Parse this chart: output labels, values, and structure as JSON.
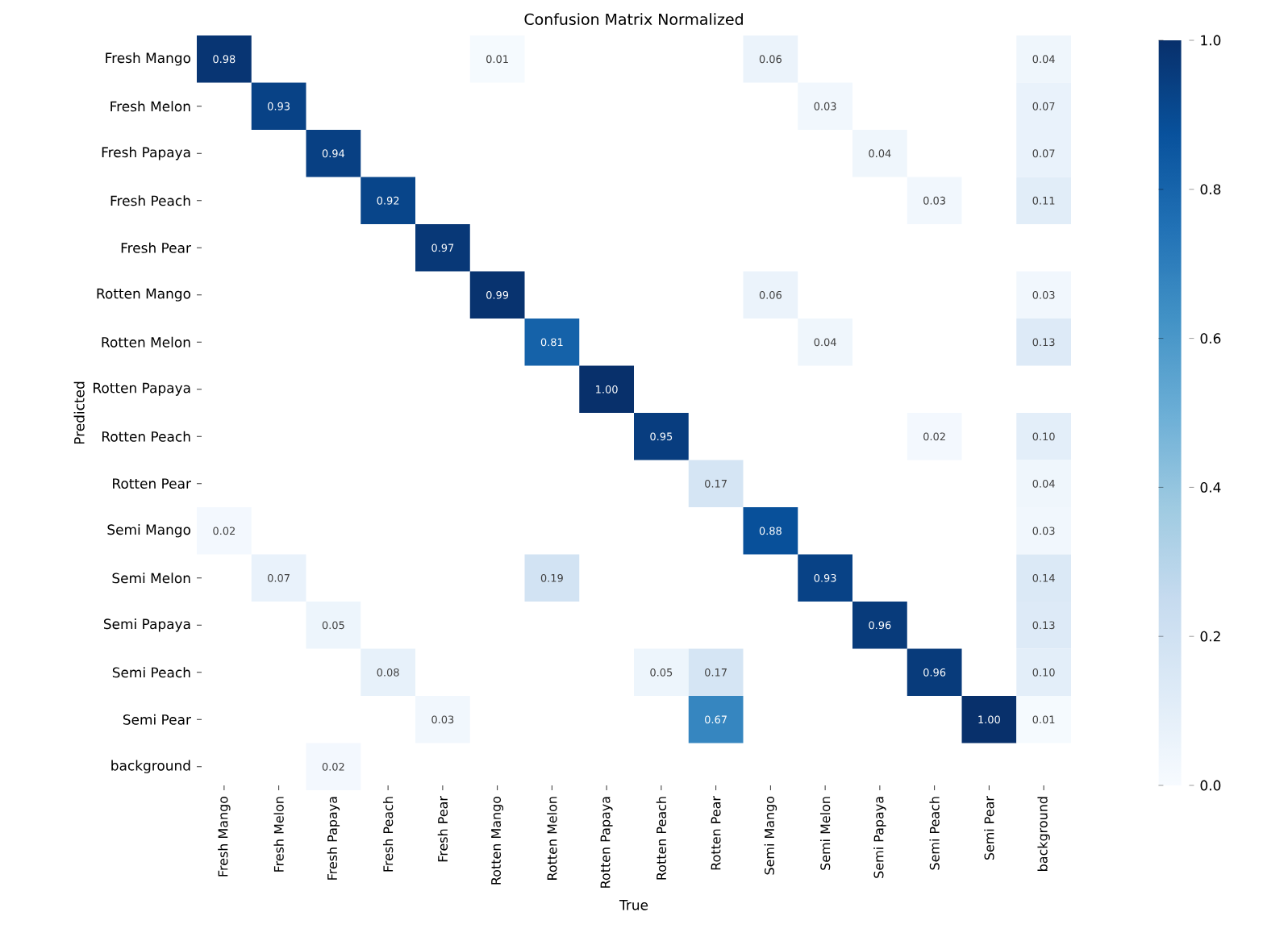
{
  "chart_data": {
    "type": "heatmap",
    "title": "Confusion Matrix Normalized",
    "xlabel": "True",
    "ylabel": "Predicted",
    "categories": [
      "Fresh Mango",
      "Fresh Melon",
      "Fresh Papaya",
      "Fresh Peach",
      "Fresh Pear",
      "Rotten Mango",
      "Rotten Melon",
      "Rotten Papaya",
      "Rotten Peach",
      "Rotten Pear",
      "Semi Mango",
      "Semi Melon",
      "Semi Papaya",
      "Semi Peach",
      "Semi Pear",
      "background"
    ],
    "y_categories": [
      "Fresh Mango",
      "Fresh Melon",
      "Fresh Papaya",
      "Fresh Peach",
      "Fresh Pear",
      "Rotten Mango",
      "Rotten Melon",
      "Rotten Papaya",
      "Rotten Peach",
      "Rotten Pear",
      "Semi Mango",
      "Semi Melon",
      "Semi Papaya",
      "Semi Peach",
      "Semi Pear",
      "background"
    ],
    "cells": [
      [
        0.98,
        null,
        null,
        null,
        null,
        0.01,
        null,
        null,
        null,
        null,
        0.06,
        null,
        null,
        null,
        null,
        0.04
      ],
      [
        null,
        0.93,
        null,
        null,
        null,
        null,
        null,
        null,
        null,
        null,
        null,
        0.03,
        null,
        null,
        null,
        0.07
      ],
      [
        null,
        null,
        0.94,
        null,
        null,
        null,
        null,
        null,
        null,
        null,
        null,
        null,
        0.04,
        null,
        null,
        0.07
      ],
      [
        null,
        null,
        null,
        0.92,
        null,
        null,
        null,
        null,
        null,
        null,
        null,
        null,
        null,
        0.03,
        null,
        0.11
      ],
      [
        null,
        null,
        null,
        null,
        0.97,
        null,
        null,
        null,
        null,
        null,
        null,
        null,
        null,
        null,
        null,
        null
      ],
      [
        null,
        null,
        null,
        null,
        null,
        0.99,
        null,
        null,
        null,
        null,
        0.06,
        null,
        null,
        null,
        null,
        0.03
      ],
      [
        null,
        null,
        null,
        null,
        null,
        null,
        0.81,
        null,
        null,
        null,
        null,
        0.04,
        null,
        null,
        null,
        0.13
      ],
      [
        null,
        null,
        null,
        null,
        null,
        null,
        null,
        1.0,
        null,
        null,
        null,
        null,
        null,
        null,
        null,
        null
      ],
      [
        null,
        null,
        null,
        null,
        null,
        null,
        null,
        null,
        0.95,
        null,
        null,
        null,
        null,
        0.02,
        null,
        0.1
      ],
      [
        null,
        null,
        null,
        null,
        null,
        null,
        null,
        null,
        null,
        0.17,
        null,
        null,
        null,
        null,
        null,
        0.04
      ],
      [
        0.02,
        null,
        null,
        null,
        null,
        null,
        null,
        null,
        null,
        null,
        0.88,
        null,
        null,
        null,
        null,
        0.03
      ],
      [
        null,
        0.07,
        null,
        null,
        null,
        null,
        0.19,
        null,
        null,
        null,
        null,
        0.93,
        null,
        null,
        null,
        0.14
      ],
      [
        null,
        null,
        0.05,
        null,
        null,
        null,
        null,
        null,
        null,
        null,
        null,
        null,
        0.96,
        null,
        null,
        0.13
      ],
      [
        null,
        null,
        null,
        0.08,
        null,
        null,
        null,
        null,
        0.05,
        0.17,
        null,
        null,
        null,
        0.96,
        null,
        0.1
      ],
      [
        null,
        null,
        null,
        null,
        0.03,
        null,
        null,
        null,
        null,
        0.67,
        null,
        null,
        null,
        null,
        1.0,
        0.01
      ],
      [
        null,
        null,
        0.02,
        null,
        null,
        null,
        null,
        null,
        null,
        null,
        null,
        null,
        null,
        null,
        null,
        null
      ]
    ],
    "cell_labels": [
      [
        "0.98",
        null,
        null,
        null,
        null,
        "0.01",
        null,
        null,
        null,
        null,
        "0.06",
        null,
        null,
        null,
        null,
        "0.04"
      ],
      [
        null,
        "0.93",
        null,
        null,
        null,
        null,
        null,
        null,
        null,
        null,
        null,
        "0.03",
        null,
        null,
        null,
        "0.07"
      ],
      [
        null,
        null,
        "0.94",
        null,
        null,
        null,
        null,
        null,
        null,
        null,
        null,
        null,
        "0.04",
        null,
        null,
        "0.07"
      ],
      [
        null,
        null,
        null,
        "0.92",
        null,
        null,
        null,
        null,
        null,
        null,
        null,
        null,
        null,
        "0.03",
        null,
        "0.11"
      ],
      [
        null,
        null,
        null,
        null,
        "0.97",
        null,
        null,
        null,
        null,
        null,
        null,
        null,
        null,
        null,
        null,
        null
      ],
      [
        null,
        null,
        null,
        null,
        null,
        "0.99",
        null,
        null,
        null,
        null,
        "0.06",
        null,
        null,
        null,
        null,
        "0.03"
      ],
      [
        null,
        null,
        null,
        null,
        null,
        null,
        "0.81",
        null,
        null,
        null,
        null,
        "0.04",
        null,
        null,
        null,
        "0.13"
      ],
      [
        null,
        null,
        null,
        null,
        null,
        null,
        null,
        "1.00",
        null,
        null,
        null,
        null,
        null,
        null,
        null,
        null
      ],
      [
        null,
        null,
        null,
        null,
        null,
        null,
        null,
        null,
        "0.95",
        null,
        null,
        null,
        null,
        "0.02",
        null,
        "0.10"
      ],
      [
        null,
        null,
        null,
        null,
        null,
        null,
        null,
        null,
        null,
        "0.17",
        null,
        null,
        null,
        null,
        null,
        "0.04"
      ],
      [
        "0.02",
        null,
        null,
        null,
        null,
        null,
        null,
        null,
        null,
        null,
        "0.88",
        null,
        null,
        null,
        null,
        "0.03"
      ],
      [
        null,
        "0.07",
        null,
        null,
        null,
        null,
        "0.19",
        null,
        null,
        null,
        null,
        "0.93",
        null,
        null,
        null,
        "0.14"
      ],
      [
        null,
        null,
        "0.05",
        null,
        null,
        null,
        null,
        null,
        null,
        null,
        null,
        null,
        "0.96",
        null,
        null,
        "0.13"
      ],
      [
        null,
        null,
        null,
        "0.08",
        null,
        null,
        null,
        null,
        "0.05",
        "0.17",
        null,
        null,
        null,
        "0.96",
        null,
        "0.10"
      ],
      [
        null,
        null,
        null,
        null,
        "0.03",
        null,
        null,
        null,
        null,
        "0.67",
        null,
        null,
        null,
        null,
        "1.00",
        "0.01"
      ],
      [
        null,
        null,
        "0.02",
        null,
        null,
        null,
        null,
        null,
        null,
        null,
        null,
        null,
        null,
        null,
        null,
        null
      ]
    ],
    "clim": [
      0,
      1
    ],
    "cticks": [
      {
        "value": 0,
        "label": "0.0"
      },
      {
        "value": 0.2,
        "label": "0.2"
      },
      {
        "value": 0.4,
        "label": "0.4"
      },
      {
        "value": 0.6,
        "label": "0.6"
      },
      {
        "value": 0.8,
        "label": "0.8"
      },
      {
        "value": 1,
        "label": "1.0"
      }
    ]
  }
}
